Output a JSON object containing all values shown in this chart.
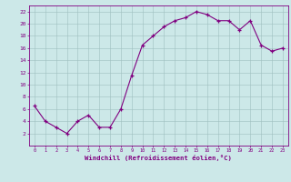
{
  "x": [
    0,
    1,
    2,
    3,
    4,
    5,
    6,
    7,
    8,
    9,
    10,
    11,
    12,
    13,
    14,
    15,
    16,
    17,
    18,
    19,
    20,
    21,
    22,
    23
  ],
  "y": [
    6.5,
    4.0,
    3.0,
    2.0,
    4.0,
    5.0,
    3.0,
    3.0,
    6.0,
    11.5,
    16.5,
    18.0,
    19.5,
    20.5,
    21.0,
    22.0,
    21.5,
    20.5,
    20.5,
    19.0,
    20.5,
    16.5,
    15.5,
    16.0
  ],
  "line_color": "#800080",
  "marker": "+",
  "marker_color": "#800080",
  "bg_color": "#cce8e8",
  "grid_color": "#9fbfbf",
  "xlabel": "Windchill (Refroidissement éolien,°C)",
  "xlabel_color": "#800080",
  "tick_color": "#800080",
  "xlim": [
    -0.5,
    23.5
  ],
  "ylim": [
    0,
    23
  ],
  "yticks": [
    2,
    4,
    6,
    8,
    10,
    12,
    14,
    16,
    18,
    20,
    22
  ],
  "xticks": [
    0,
    1,
    2,
    3,
    4,
    5,
    6,
    7,
    8,
    9,
    10,
    11,
    12,
    13,
    14,
    15,
    16,
    17,
    18,
    19,
    20,
    21,
    22,
    23
  ]
}
